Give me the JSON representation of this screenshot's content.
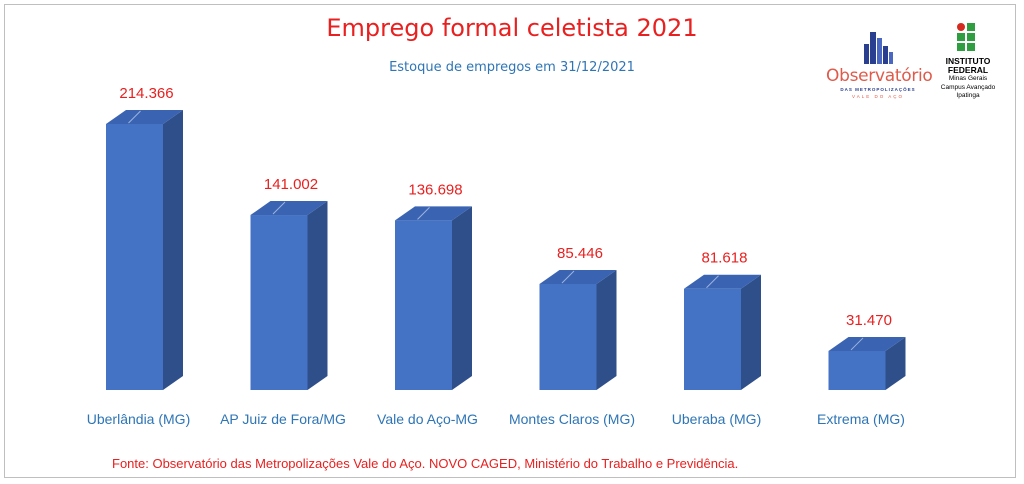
{
  "chart_data": {
    "type": "bar",
    "title": "Emprego formal celetista 2021",
    "subtitle": "Estoque de empregos em 31/12/2021",
    "categories": [
      "Uberlândia (MG)",
      "AP Juiz de Fora/MG",
      "Vale do Aço-MG",
      "Montes Claros (MG)",
      "Uberaba (MG)",
      "Extrema (MG)"
    ],
    "values": [
      214366,
      141002,
      136698,
      85446,
      81618,
      31470
    ],
    "value_labels": [
      "214.366",
      "141.002",
      "136.698",
      "85.446",
      "81.618",
      "31.470"
    ],
    "xlabel": "",
    "ylabel": "",
    "ylim": [
      0,
      214366
    ],
    "grid": false,
    "legend": "none",
    "style": "3d-column"
  },
  "source": "Fonte: Observatório das Metropolizações Vale do Aço. NOVO CAGED, Ministério do Trabalho e Previdência.",
  "logos": {
    "observatorio": {
      "name": "Observatório",
      "line1": "DAS METROPOLIZAÇÕES",
      "line2": "VALE DO AÇO"
    },
    "instituto_federal": {
      "line1": "INSTITUTO",
      "line2": "FEDERAL",
      "line3": "Minas Gerais",
      "line4": "Campus Avançado",
      "line5": "Ipatinga"
    }
  },
  "colors": {
    "bar_front": "#4472c4",
    "bar_side": "#2f4f8a",
    "bar_top": "#3a64b2",
    "title": "#e8201f",
    "subtitle": "#2e75b6",
    "category_labels": "#2e75b6",
    "value_labels": "#e8201f",
    "if_green": "#2e9e41",
    "if_red": "#d42a20"
  }
}
